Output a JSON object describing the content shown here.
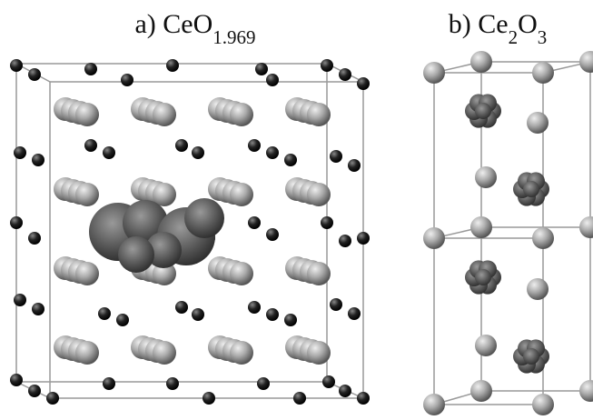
{
  "panels": [
    {
      "title": [
        {
          "text": "a) CeO",
          "sub": false
        },
        {
          "text": "1.969",
          "sub": true
        }
      ]
    },
    {
      "title": [
        {
          "text": "b) Ce",
          "sub": false
        },
        {
          "text": "2",
          "sub": true
        },
        {
          "text": "O",
          "sub": false
        },
        {
          "text": "3",
          "sub": true
        }
      ]
    }
  ]
}
